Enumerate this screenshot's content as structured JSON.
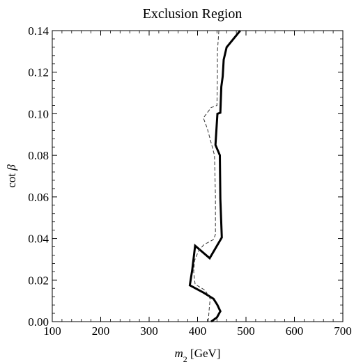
{
  "chart_data": {
    "type": "line",
    "title": "Exclusion Region",
    "xlabel": {
      "var": "m",
      "sub": "2",
      "unit": " [GeV]"
    },
    "ylabel": {
      "prefix": "cot ",
      "var": "β"
    },
    "xlim": [
      100,
      700
    ],
    "ylim": [
      0,
      0.14
    ],
    "xticks": [
      {
        "value": 100,
        "label": "100"
      },
      {
        "value": 200,
        "label": "200"
      },
      {
        "value": 300,
        "label": "300"
      },
      {
        "value": 400,
        "label": "400"
      },
      {
        "value": 500,
        "label": "500"
      },
      {
        "value": 600,
        "label": "600"
      },
      {
        "value": 700,
        "label": "700"
      }
    ],
    "yticks": [
      {
        "value": 0,
        "label": "0.00"
      },
      {
        "value": 0.02,
        "label": "0.02"
      },
      {
        "value": 0.04,
        "label": "0.04"
      },
      {
        "value": 0.06,
        "label": "0.06"
      },
      {
        "value": 0.08,
        "label": "0.08"
      },
      {
        "value": 0.1,
        "label": "0.10"
      },
      {
        "value": 0.12,
        "label": "0.12"
      },
      {
        "value": 0.14,
        "label": "0.14"
      }
    ],
    "grid": false,
    "series": [
      {
        "style": "solid",
        "points": [
          [
            428,
            0.0
          ],
          [
            440,
            0.002
          ],
          [
            447,
            0.005
          ],
          [
            441,
            0.008
          ],
          [
            433,
            0.011
          ],
          [
            412,
            0.014
          ],
          [
            384,
            0.0175
          ],
          [
            389,
            0.025
          ],
          [
            395,
            0.0365
          ],
          [
            425,
            0.0305
          ],
          [
            450,
            0.0405
          ],
          [
            447,
            0.059
          ],
          [
            446,
            0.08
          ],
          [
            437,
            0.085
          ],
          [
            441,
            0.1
          ],
          [
            447,
            0.1005
          ],
          [
            449,
            0.113
          ],
          [
            452,
            0.118
          ],
          [
            454,
            0.126
          ],
          [
            460,
            0.132
          ],
          [
            488,
            0.14
          ]
        ]
      },
      {
        "style": "dashed",
        "points": [
          [
            422,
            0.0
          ],
          [
            424,
            0.006
          ],
          [
            426,
            0.011
          ],
          [
            416,
            0.015
          ],
          [
            395,
            0.018
          ],
          [
            392,
            0.024
          ],
          [
            394,
            0.0295
          ],
          [
            402,
            0.034
          ],
          [
            413,
            0.037
          ],
          [
            433,
            0.0395
          ],
          [
            437,
            0.042
          ],
          [
            437,
            0.06
          ],
          [
            435,
            0.08
          ],
          [
            420,
            0.093
          ],
          [
            412,
            0.098
          ],
          [
            428,
            0.103
          ],
          [
            440,
            0.104
          ],
          [
            441,
            0.118
          ],
          [
            441,
            0.13
          ],
          [
            444,
            0.14
          ]
        ]
      }
    ]
  }
}
